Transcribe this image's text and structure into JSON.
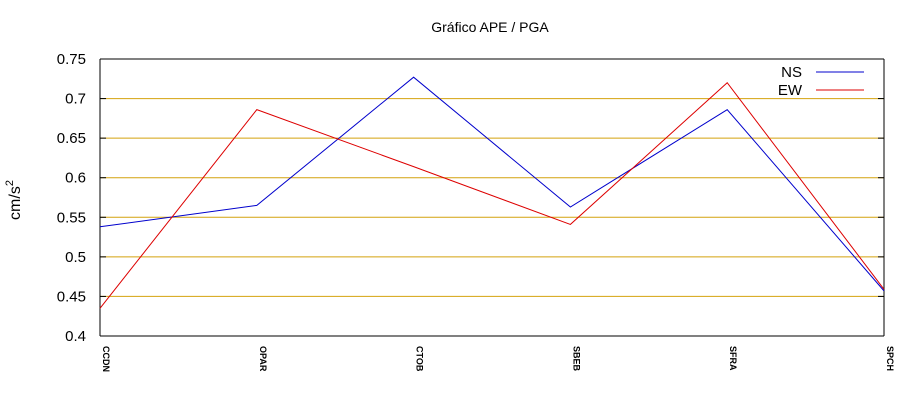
{
  "chart_data": {
    "type": "line",
    "title": "Gráfico  APE / PGA",
    "xlabel": "",
    "ylabel": "cm/s",
    "ylabel_superscript": "2",
    "categories": [
      "CCDN",
      "OPAR",
      "CTOB",
      "SBEB",
      "SFRA",
      "SPCH"
    ],
    "ylim": [
      0.4,
      0.75
    ],
    "yticks": [
      "0.4",
      "0.45",
      "0.5",
      "0.55",
      "0.6",
      "0.65",
      "0.7",
      "0.75"
    ],
    "grid": true,
    "grid_color": "#d4a20e",
    "legend_position": "top-right",
    "series": [
      {
        "name": "NS",
        "color": "#0000cc",
        "values": [
          0.538,
          0.565,
          0.727,
          0.563,
          0.686,
          0.457
        ]
      },
      {
        "name": "EW",
        "color": "#dd0000",
        "values": [
          0.435,
          0.686,
          0.614,
          0.541,
          0.72,
          0.459
        ]
      }
    ]
  }
}
